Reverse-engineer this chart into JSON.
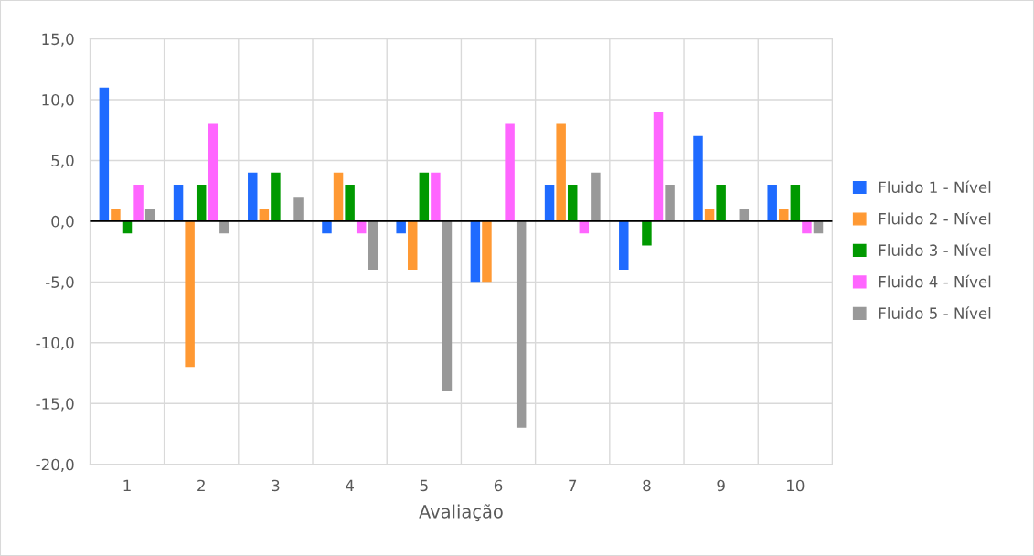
{
  "chart_data": {
    "type": "bar",
    "xlabel": "Avaliação",
    "categories": [
      "1",
      "2",
      "3",
      "4",
      "5",
      "6",
      "7",
      "8",
      "9",
      "10"
    ],
    "series": [
      {
        "name": "Fluido 1 - Nível",
        "color": "#1f6bff",
        "values": [
          11,
          3,
          4,
          -1,
          -1,
          -5,
          3,
          -4,
          7,
          3
        ]
      },
      {
        "name": "Fluido 2 - Nível",
        "color": "#ff9933",
        "values": [
          1,
          -12,
          1,
          4,
          -4,
          -5,
          8,
          0,
          1,
          1
        ]
      },
      {
        "name": "Fluido 3 - Nível",
        "color": "#009900",
        "values": [
          -1,
          3,
          4,
          3,
          4,
          0,
          3,
          -2,
          3,
          3
        ]
      },
      {
        "name": "Fluido 4 - Nível",
        "color": "#ff66ff",
        "values": [
          3,
          8,
          0,
          -1,
          4,
          8,
          -1,
          9,
          0,
          -1
        ]
      },
      {
        "name": "Fluido 5 - Nível",
        "color": "#999999",
        "values": [
          1,
          -1,
          2,
          -4,
          -14,
          -17,
          4,
          3,
          1,
          -1
        ]
      }
    ],
    "ylim": [
      -20,
      15
    ],
    "yticks": [
      {
        "value": -20,
        "label": "-20,0"
      },
      {
        "value": -15,
        "label": "-15,0"
      },
      {
        "value": -10,
        "label": "-10,0"
      },
      {
        "value": -5,
        "label": "-5,0"
      },
      {
        "value": 0,
        "label": "0,0"
      },
      {
        "value": 5,
        "label": "5,0"
      },
      {
        "value": 10,
        "label": "10,0"
      },
      {
        "value": 15,
        "label": "15,0"
      }
    ],
    "grid": true,
    "legend": "right"
  }
}
